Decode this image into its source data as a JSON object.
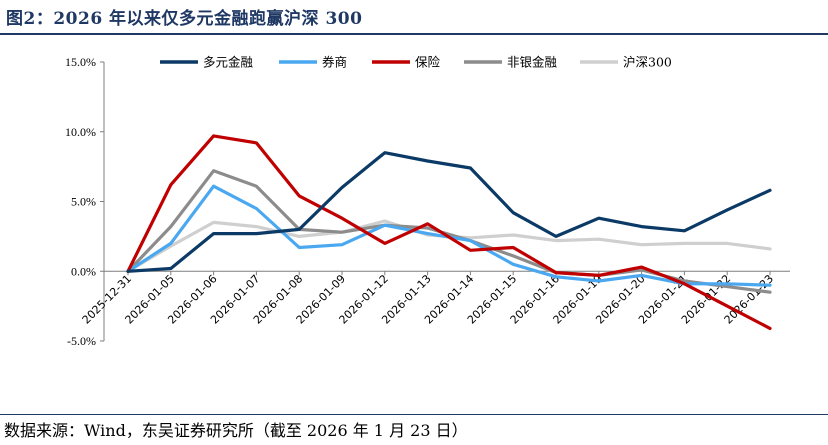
{
  "figure": {
    "title": "图2：2026 年以来仅多元金融跑赢沪深 300",
    "source": "数据来源：Wind，东吴证券研究所（截至 2026 年 1 月 23 日）"
  },
  "chart_data": {
    "type": "line",
    "title": "",
    "xlabel": "",
    "ylabel": "",
    "ylim": [
      -5,
      15
    ],
    "yticks": [
      15,
      10,
      5,
      0,
      -5
    ],
    "ytick_labels": [
      "15.0%",
      "10.0%",
      "5.0%",
      "0.0%",
      "-5.0%"
    ],
    "legend_position": "top",
    "grid": false,
    "categories": [
      "2025-12-31",
      "2026-01-05",
      "2026-01-06",
      "2026-01-07",
      "2026-01-08",
      "2026-01-09",
      "2026-01-12",
      "2026-01-13",
      "2026-01-14",
      "2026-01-15",
      "2026-01-16",
      "2026-01-19",
      "2026-01-20",
      "2026-01-21",
      "2026-01-22",
      "2026-01-23"
    ],
    "series": [
      {
        "name": "多元金融",
        "color": "#0b3a66",
        "values": [
          0.0,
          0.2,
          2.7,
          2.7,
          3.0,
          6.0,
          8.5,
          7.9,
          7.4,
          4.2,
          2.5,
          3.8,
          3.2,
          2.9,
          4.4,
          5.8
        ]
      },
      {
        "name": "券商",
        "color": "#4aa8f0",
        "values": [
          0.0,
          2.0,
          6.1,
          4.5,
          1.7,
          1.9,
          3.3,
          2.7,
          2.2,
          0.5,
          -0.4,
          -0.7,
          -0.3,
          -0.9,
          -0.9,
          -1.0
        ]
      },
      {
        "name": "保险",
        "color": "#c00000",
        "values": [
          0.0,
          6.2,
          9.7,
          9.2,
          5.4,
          3.8,
          2.0,
          3.4,
          1.5,
          1.7,
          -0.1,
          -0.3,
          0.3,
          -0.9,
          -2.5,
          -4.1
        ]
      },
      {
        "name": "非银金融",
        "color": "#8c8c8c",
        "values": [
          0.0,
          3.2,
          7.2,
          6.1,
          3.0,
          2.8,
          3.3,
          3.1,
          2.2,
          1.1,
          -0.1,
          -0.3,
          0.1,
          -0.7,
          -1.1,
          -1.5
        ]
      },
      {
        "name": "沪深300",
        "color": "#cfcfcf",
        "values": [
          0.0,
          1.8,
          3.5,
          3.2,
          2.5,
          2.8,
          3.6,
          2.6,
          2.4,
          2.6,
          2.2,
          2.3,
          1.9,
          2.0,
          2.0,
          1.6
        ]
      }
    ]
  }
}
